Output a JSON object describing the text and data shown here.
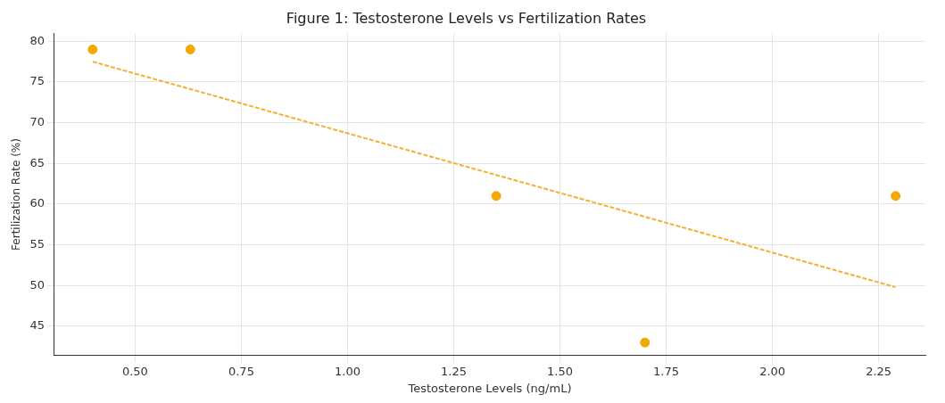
{
  "chart_data": {
    "type": "scatter",
    "title": "Figure 1: Testosterone Levels vs Fertilization Rates",
    "xlabel": "Testosterone Levels (ng/mL)",
    "ylabel": "Fertilization Rate (%)",
    "series": [
      {
        "color": "#f2a900",
        "x": [
          0.4,
          0.63,
          1.35,
          1.7,
          2.29
        ],
        "values": [
          79,
          79,
          61,
          43,
          61
        ]
      },
      {
        "type": "line",
        "color": "#f2b134",
        "x": [
          0.4,
          2.29
        ],
        "values": [
          77.5,
          49.8
        ],
        "line_style": "dashed",
        "marker": "none"
      }
    ],
    "xlim": [
      0.31,
      2.36
    ],
    "xticks": [
      {
        "value": 0.5,
        "label": "0.50"
      },
      {
        "value": 0.75,
        "label": "0.75"
      },
      {
        "value": 1,
        "label": "1.00"
      },
      {
        "value": 1.25,
        "label": "1.25"
      },
      {
        "value": 1.5,
        "label": "1.50"
      },
      {
        "value": 1.75,
        "label": "1.75"
      },
      {
        "value": 2,
        "label": "2.00"
      },
      {
        "value": 2.25,
        "label": "2.25"
      }
    ],
    "ylim": [
      41.4,
      81
    ],
    "yticks": [
      45,
      50,
      55,
      60,
      65,
      70,
      75,
      80
    ],
    "grid": true,
    "legend": false,
    "marker": "circle"
  }
}
